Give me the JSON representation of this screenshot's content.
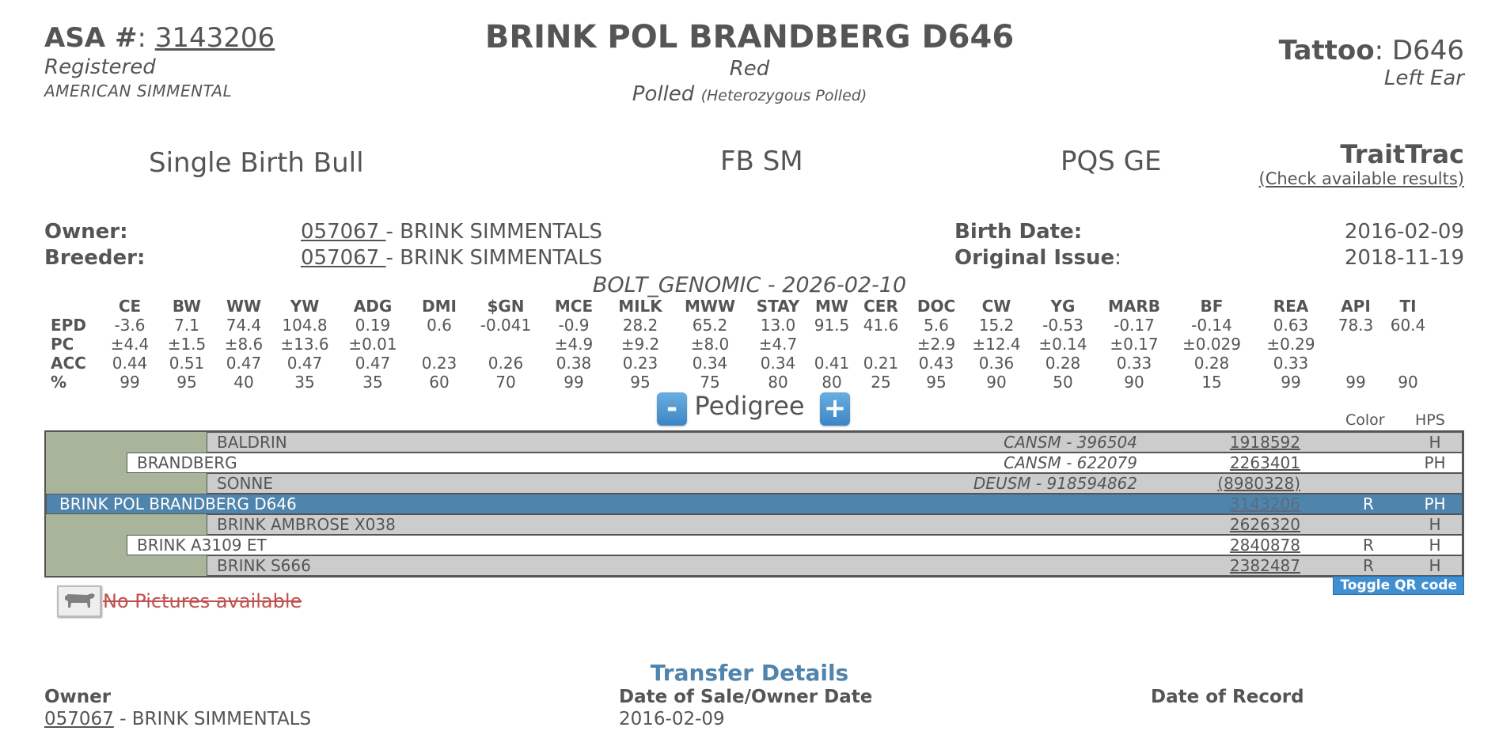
{
  "header": {
    "asa_label": "ASA #",
    "asa_number": "3143206",
    "status": "Registered",
    "breed_association": "AMERICAN SIMMENTAL",
    "animal_name": "BRINK POL BRANDBERG D646",
    "color": "Red",
    "polled": "Polled",
    "polled_detail": "(Heterozygous Polled)",
    "tattoo_label": "Tattoo",
    "tattoo_value": "D646",
    "tattoo_location": "Left Ear"
  },
  "summary": {
    "birth_type": "Single Birth Bull",
    "breed_code": "FB SM",
    "pqs": "PQS GE",
    "traittrac_title": "TraitTrac",
    "traittrac_link": "(Check available results)"
  },
  "owner_info": {
    "owner_label": "Owner:",
    "owner_id": "057067 ",
    "owner_name": "- BRINK SIMMENTALS",
    "breeder_label": "Breeder:",
    "breeder_id": "057067 ",
    "breeder_name": "- BRINK SIMMENTALS",
    "birth_date_label": "Birth Date:",
    "birth_date": "2016-02-09",
    "original_issue_label": "Original Issue",
    "original_issue": "2018-11-19"
  },
  "epd": {
    "run_label": "BOLT_GENOMIC - 2026-02-10",
    "columns": [
      "CE",
      "BW",
      "WW",
      "YW",
      "ADG",
      "DMI",
      "$GN",
      "MCE",
      "MILK",
      "MWW",
      "STAY",
      "MW",
      "CER",
      "DOC",
      "CW",
      "YG",
      "MARB",
      "BF",
      "REA",
      "API",
      "TI"
    ],
    "rows": [
      {
        "label": "EPD",
        "values": [
          "-3.6",
          "7.1",
          "74.4",
          "104.8",
          "0.19",
          "0.6",
          "-0.041",
          "-0.9",
          "28.2",
          "65.2",
          "13.0",
          "91.5",
          "41.6",
          "5.6",
          "15.2",
          "-0.53",
          "-0.17",
          "-0.14",
          "0.63",
          "78.3",
          "60.4"
        ]
      },
      {
        "label": "PC",
        "values": [
          "±4.4",
          "±1.5",
          "±8.6",
          "±13.6",
          "±0.01",
          "",
          "",
          "±4.9",
          "±9.2",
          "±8.0",
          "±4.7",
          "",
          "",
          "±2.9",
          "±12.4",
          "±0.14",
          "±0.17",
          "±0.029",
          "±0.29",
          "",
          ""
        ]
      },
      {
        "label": "ACC",
        "values": [
          "0.44",
          "0.51",
          "0.47",
          "0.47",
          "0.47",
          "0.23",
          "0.26",
          "0.38",
          "0.23",
          "0.34",
          "0.34",
          "0.41",
          "0.21",
          "0.43",
          "0.36",
          "0.28",
          "0.33",
          "0.28",
          "0.33",
          "",
          ""
        ]
      },
      {
        "label": "%",
        "values": [
          "99",
          "95",
          "40",
          "35",
          "35",
          "60",
          "70",
          "99",
          "95",
          "75",
          "80",
          "80",
          "25",
          "95",
          "90",
          "50",
          "90",
          "15",
          "99",
          "99",
          "90"
        ]
      }
    ]
  },
  "pedigree": {
    "title": "Pedigree",
    "minus": "-",
    "plus": "+",
    "color_header": "Color",
    "hps_header": "HPS",
    "rows": [
      {
        "name": "BALDRIN",
        "reg": "CANSM - 396504",
        "number": "1918592",
        "color": "",
        "hps": "H"
      },
      {
        "name": "BRANDBERG",
        "reg": "CANSM - 622079",
        "number": "2263401",
        "color": "",
        "hps": "PH"
      },
      {
        "name": "SONNE",
        "reg": "DEUSM - 918594862",
        "number": "(8980328)",
        "color": "",
        "hps": ""
      },
      {
        "name": "BRINK POL BRANDBERG D646",
        "reg": "",
        "number": "3143206",
        "color": "R",
        "hps": "PH"
      },
      {
        "name": "BRINK AMBROSE X038",
        "reg": "",
        "number": "2626320",
        "color": "",
        "hps": "H"
      },
      {
        "name": "BRINK A3109 ET",
        "reg": "",
        "number": "2840878",
        "color": "R",
        "hps": "H"
      },
      {
        "name": "BRINK S666",
        "reg": "",
        "number": "2382487",
        "color": "R",
        "hps": "H"
      }
    ]
  },
  "qr_toggle": "Toggle QR code",
  "pictures": "No Pictures available",
  "transfer": {
    "title": "Transfer Details",
    "owner_label": "Owner",
    "owner_id": "057067",
    "owner_name": " - BRINK SIMMENTALS",
    "sale_label": "Date of Sale/Owner Date",
    "sale_date": "2016-02-09",
    "record_label": "Date of Record"
  }
}
